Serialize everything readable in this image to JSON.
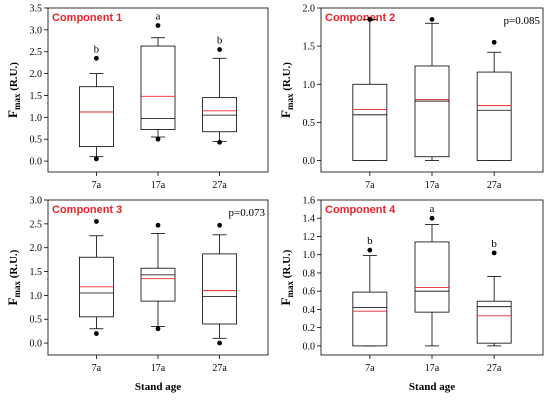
{
  "chart_data": [
    {
      "type": "box",
      "title": "Component 1",
      "ylabel": "F",
      "ylabel_sub": "max",
      "ylabel_suffix": " (R.U.)",
      "xlabel": "",
      "categories": [
        "7a",
        "17a",
        "27a"
      ],
      "ylim": [
        -0.25,
        3.5
      ],
      "yticks": [
        "0.0",
        "0.5",
        "1.0",
        "1.5",
        "2.0",
        "2.5",
        "3.0",
        "3.5"
      ],
      "annotation": "",
      "letters": [
        "b",
        "a",
        "b"
      ],
      "boxes": [
        {
          "whislo": 0.1,
          "q1": 0.33,
          "median": 1.12,
          "mean": 1.12,
          "q3": 1.7,
          "whishi": 2.0,
          "fliers": [
            0.05,
            2.35
          ]
        },
        {
          "whislo": 0.55,
          "q1": 0.72,
          "median": 0.97,
          "mean": 1.48,
          "q3": 2.63,
          "whishi": 2.82,
          "fliers": [
            0.5,
            3.1
          ]
        },
        {
          "whislo": 0.45,
          "q1": 0.67,
          "median": 1.05,
          "mean": 1.15,
          "q3": 1.45,
          "whishi": 2.35,
          "fliers": [
            0.43,
            2.55
          ]
        }
      ]
    },
    {
      "type": "box",
      "title": "Component 2",
      "ylabel": "F",
      "ylabel_sub": "max",
      "ylabel_suffix": " (R.U.)",
      "xlabel": "",
      "categories": [
        "7a",
        "17a",
        "27a"
      ],
      "ylim": [
        -0.15,
        2.0
      ],
      "yticks": [
        "0.0",
        "0.5",
        "1.0",
        "1.5",
        "2.0"
      ],
      "annotation": "p=0.085",
      "letters": [],
      "boxes": [
        {
          "whislo": 0.0,
          "q1": 0.0,
          "median": 0.6,
          "mean": 0.67,
          "q3": 1.0,
          "whishi": 1.85,
          "fliers": [
            1.85
          ]
        },
        {
          "whislo": 0.0,
          "q1": 0.05,
          "median": 0.78,
          "mean": 0.8,
          "q3": 1.24,
          "whishi": 1.8,
          "fliers": [
            1.85
          ]
        },
        {
          "whislo": 0.0,
          "q1": 0.0,
          "median": 0.66,
          "mean": 0.72,
          "q3": 1.16,
          "whishi": 1.42,
          "fliers": [
            1.55
          ]
        }
      ]
    },
    {
      "type": "box",
      "title": "Component 3",
      "ylabel": "F",
      "ylabel_sub": "max",
      "ylabel_suffix": " (R.U.)",
      "xlabel": "Stand age",
      "categories": [
        "7a",
        "17a",
        "27a"
      ],
      "ylim": [
        -0.25,
        3.0
      ],
      "yticks": [
        "0.0",
        "0.5",
        "1.0",
        "1.5",
        "2.0",
        "2.5",
        "3.0"
      ],
      "annotation": "p=0.073",
      "letters": [],
      "boxes": [
        {
          "whislo": 0.3,
          "q1": 0.55,
          "median": 1.05,
          "mean": 1.18,
          "q3": 1.8,
          "whishi": 2.25,
          "fliers": [
            0.2,
            2.55
          ]
        },
        {
          "whislo": 0.35,
          "q1": 0.88,
          "median": 1.43,
          "mean": 1.35,
          "q3": 1.57,
          "whishi": 2.3,
          "fliers": [
            0.3,
            2.47
          ]
        },
        {
          "whislo": 0.1,
          "q1": 0.4,
          "median": 0.98,
          "mean": 1.1,
          "q3": 1.87,
          "whishi": 2.27,
          "fliers": [
            0.0,
            2.47
          ]
        }
      ]
    },
    {
      "type": "box",
      "title": "Component 4",
      "ylabel": "F",
      "ylabel_sub": "max",
      "ylabel_suffix": " (R.U.)",
      "xlabel": "Stand age",
      "categories": [
        "7a",
        "17a",
        "27a"
      ],
      "ylim": [
        -0.1,
        1.6
      ],
      "yticks": [
        "0.0",
        "0.2",
        "0.4",
        "0.6",
        "0.8",
        "1.0",
        "1.2",
        "1.4",
        "1.6"
      ],
      "annotation": "",
      "letters": [
        "b",
        "a",
        "b"
      ],
      "boxes": [
        {
          "whislo": 0.0,
          "q1": 0.0,
          "median": 0.42,
          "mean": 0.38,
          "q3": 0.59,
          "whishi": 0.99,
          "fliers": [
            1.05
          ]
        },
        {
          "whislo": 0.0,
          "q1": 0.37,
          "median": 0.6,
          "mean": 0.64,
          "q3": 1.14,
          "whishi": 1.33,
          "fliers": [
            1.4
          ]
        },
        {
          "whislo": 0.0,
          "q1": 0.03,
          "median": 0.43,
          "mean": 0.33,
          "q3": 0.49,
          "whishi": 0.76,
          "fliers": [
            1.02
          ]
        }
      ]
    }
  ],
  "colors": {
    "mean_line": "#e8262a",
    "title_text": "#e8262a",
    "frame": "#000000"
  }
}
